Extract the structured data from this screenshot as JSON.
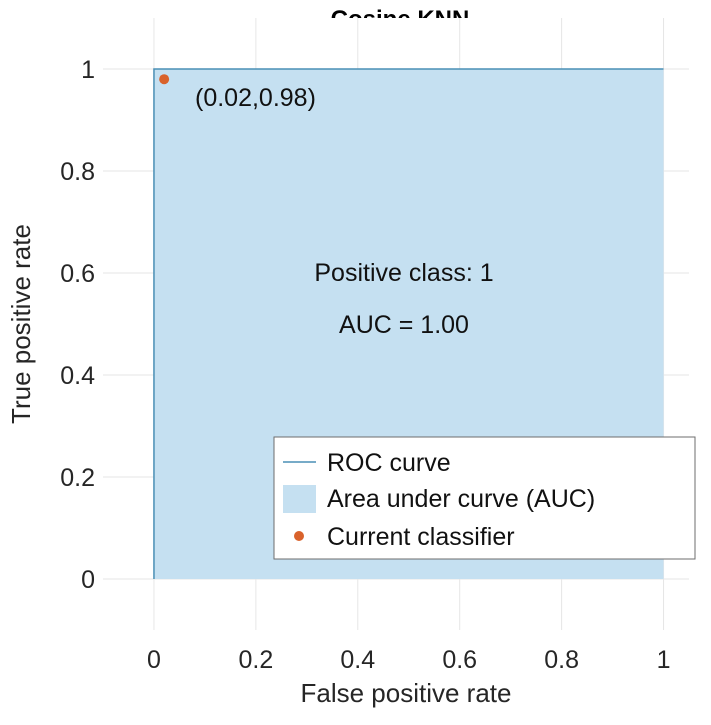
{
  "chart_data": {
    "type": "area",
    "title": "Cosine KNN",
    "xlabel": "False positive rate",
    "ylabel": "True positive rate",
    "xlim": [
      -0.1,
      1.05
    ],
    "ylim": [
      -0.1,
      1.1
    ],
    "xticks": [
      0,
      0.2,
      0.4,
      0.6,
      0.8,
      1
    ],
    "xtick_labels": [
      "0",
      "0.2",
      "0.4",
      "0.6",
      "0.8",
      "1"
    ],
    "yticks": [
      0,
      0.2,
      0.4,
      0.6,
      0.8,
      1
    ],
    "ytick_labels": [
      "0",
      "0.2",
      "0.4",
      "0.6",
      "0.8",
      "1"
    ],
    "grid": true,
    "roc_curve": {
      "name": "ROC curve",
      "color": "#4a8fb5",
      "x": [
        0,
        0,
        1
      ],
      "y": [
        0,
        1,
        1
      ]
    },
    "auc_area": {
      "name": "Area under curve (AUC)",
      "color": "#c5e0f1"
    },
    "current_classifier": {
      "name": "Current classifier",
      "color": "#d9622b",
      "x": 0.02,
      "y": 0.98,
      "label": "(0.02,0.98)"
    },
    "annotations": {
      "positive_class": "Positive class: 1",
      "auc": "AUC = 1.00"
    },
    "legend": {
      "placement": "lower-right",
      "entries": [
        "ROC curve",
        "Area under curve (AUC)",
        "Current classifier"
      ]
    }
  }
}
